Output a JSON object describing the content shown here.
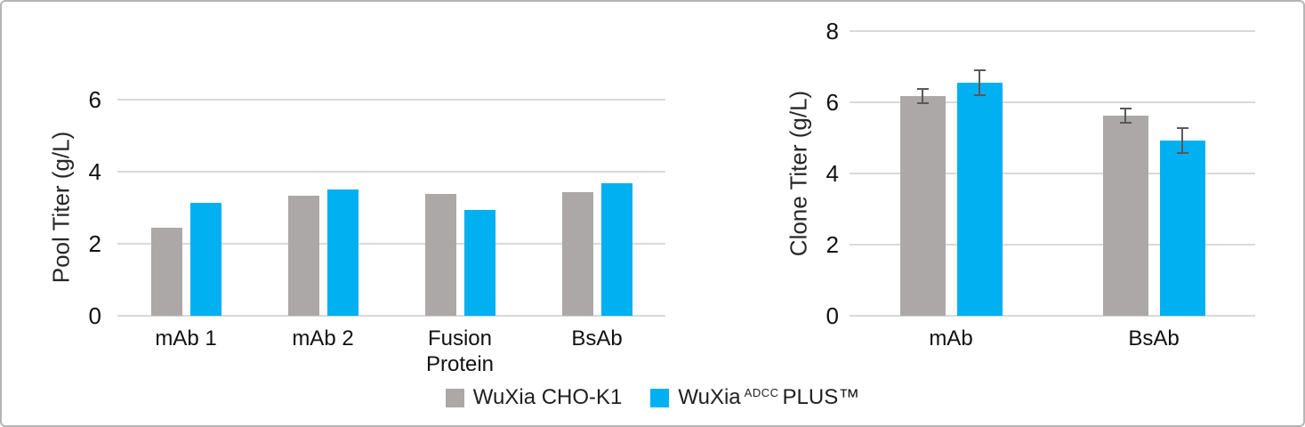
{
  "figure": {
    "background": "#ffffff",
    "border_color": "#b6b6b6"
  },
  "colors": {
    "gray_series": "#aca8a8",
    "blue_series": "#00b0f0",
    "gridline": "#d9d9d9",
    "error_bar": "#595959",
    "text": "#1f1f1f"
  },
  "legend": {
    "items": [
      {
        "label": "WuXia CHO-K1",
        "color": "#aca8a8"
      },
      {
        "brand": "WuXia",
        "sup": "ADCC",
        "rest": "PLUS™",
        "color": "#00b0f0"
      }
    ]
  },
  "chart_data": [
    {
      "type": "bar",
      "title": "",
      "ylabel": "Pool Titer (g/L)",
      "xlabel": "",
      "categories": [
        "mAb 1",
        "mAb 2",
        "Fusion Protein",
        "BsAb"
      ],
      "series": [
        {
          "name": "WuXia CHO-K1",
          "color": "#aca8a8",
          "values": [
            2.45,
            3.33,
            3.38,
            3.42
          ]
        },
        {
          "name": "WuXia ADCC PLUS™",
          "color": "#00b0f0",
          "values": [
            3.14,
            3.5,
            2.95,
            3.68
          ]
        }
      ],
      "ylim": [
        0,
        6
      ],
      "yticks": [
        0,
        2,
        4,
        6
      ],
      "grid": true,
      "legend_position": "bottom-center-shared"
    },
    {
      "type": "bar",
      "title": "",
      "ylabel": "Clone Titer (g/L)",
      "xlabel": "",
      "categories": [
        "mAb",
        "BsAb"
      ],
      "series": [
        {
          "name": "WuXia CHO-K1",
          "color": "#aca8a8",
          "values": [
            6.17,
            5.62
          ],
          "errors": [
            0.2,
            0.2
          ]
        },
        {
          "name": "WuXia ADCC PLUS™",
          "color": "#00b0f0",
          "values": [
            6.55,
            4.92
          ],
          "errors": [
            0.35,
            0.35
          ]
        }
      ],
      "ylim": [
        0,
        8
      ],
      "yticks": [
        0,
        2,
        4,
        6,
        8
      ],
      "grid": true,
      "legend_position": "bottom-center-shared"
    }
  ]
}
